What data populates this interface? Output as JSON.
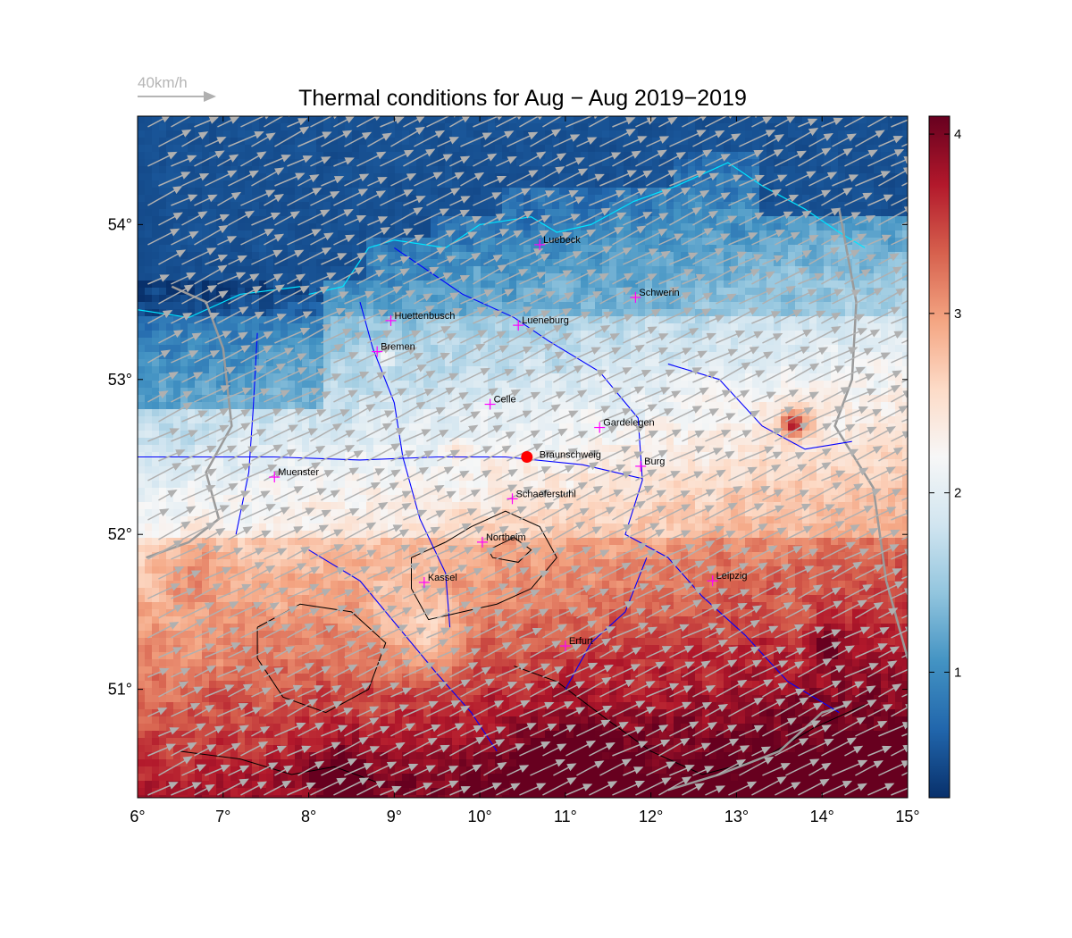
{
  "title": "Thermal conditions for Aug − Aug  2019−2019",
  "wind_legend": {
    "label": "40km/h"
  },
  "map": {
    "lon_range": [
      6,
      15
    ],
    "lat_range": [
      50.3,
      54.7
    ],
    "lon_ticks": [
      {
        "value": 6,
        "label": "6°"
      },
      {
        "value": 7,
        "label": "7°"
      },
      {
        "value": 8,
        "label": "8°"
      },
      {
        "value": 9,
        "label": "9°"
      },
      {
        "value": 10,
        "label": "10°"
      },
      {
        "value": 11,
        "label": "11°"
      },
      {
        "value": 12,
        "label": "12°"
      },
      {
        "value": 13,
        "label": "13°"
      },
      {
        "value": 14,
        "label": "14°"
      },
      {
        "value": 15,
        "label": "15°"
      }
    ],
    "lat_ticks": [
      {
        "value": 51,
        "label": "51°"
      },
      {
        "value": 52,
        "label": "52°"
      },
      {
        "value": 53,
        "label": "53°"
      },
      {
        "value": 54,
        "label": "54°"
      }
    ],
    "cities": [
      {
        "name": "Luebeck",
        "lon": 10.7,
        "lat": 53.87
      },
      {
        "name": "Schwerin",
        "lon": 11.82,
        "lat": 53.53
      },
      {
        "name": "Huettenbusch",
        "lon": 8.96,
        "lat": 53.38
      },
      {
        "name": "Lueneburg",
        "lon": 10.45,
        "lat": 53.35
      },
      {
        "name": "Bremen",
        "lon": 8.8,
        "lat": 53.18
      },
      {
        "name": "Celle",
        "lon": 10.12,
        "lat": 52.84
      },
      {
        "name": "Gardelegen",
        "lon": 11.4,
        "lat": 52.69
      },
      {
        "name": "Burg",
        "lon": 11.88,
        "lat": 52.44
      },
      {
        "name": "Muenster",
        "lon": 7.6,
        "lat": 52.37
      },
      {
        "name": "Schaeferstuhl",
        "lon": 10.38,
        "lat": 52.23
      },
      {
        "name": "Northeim",
        "lon": 10.03,
        "lat": 51.95
      },
      {
        "name": "Kassel",
        "lon": 9.35,
        "lat": 51.69
      },
      {
        "name": "Leipzig",
        "lon": 12.72,
        "lat": 51.7
      },
      {
        "name": "Erfurt",
        "lon": 11.0,
        "lat": 51.28
      }
    ],
    "reference_site": {
      "name": "Braunschweig",
      "lon": 10.55,
      "lat": 52.5,
      "color": "#ff0000"
    },
    "colors": {
      "city_marker": "#ff00ff",
      "river": "#0000ff",
      "coast": "#00ffff",
      "contour": "#000000",
      "wind_arrow": "#b0b0b0",
      "high_contour": "#ffff00"
    }
  },
  "colorbar": {
    "range": [
      0.3,
      4.1
    ],
    "ticks": [
      {
        "value": 1,
        "label": "1"
      },
      {
        "value": 2,
        "label": "2"
      },
      {
        "value": 3,
        "label": "3"
      },
      {
        "value": 4,
        "label": "4"
      }
    ],
    "colormap": [
      "#08306b",
      "#2166ac",
      "#4393c3",
      "#92c5de",
      "#d1e5f0",
      "#f7f7f7",
      "#fddbc7",
      "#f4a582",
      "#d6604d",
      "#b2182b",
      "#67001f"
    ]
  }
}
